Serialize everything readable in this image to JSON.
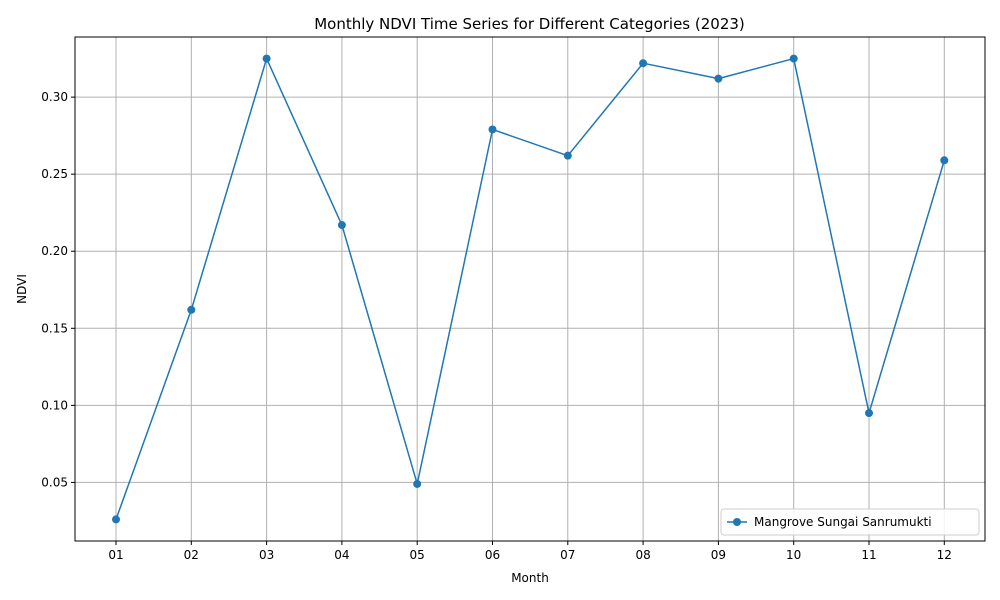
{
  "chart_data": {
    "type": "line",
    "title": "Monthly NDVI Time Series for Different Categories (2023)",
    "xlabel": "Month",
    "ylabel": "NDVI",
    "categories": [
      "01",
      "02",
      "03",
      "04",
      "05",
      "06",
      "07",
      "08",
      "09",
      "10",
      "11",
      "12"
    ],
    "series": [
      {
        "name": "Mangrove Sungai Sanrumukti",
        "color": "#1f77b4",
        "values": [
          0.026,
          0.162,
          0.325,
          0.217,
          0.049,
          0.279,
          0.262,
          0.322,
          0.312,
          0.325,
          0.095,
          0.259
        ]
      }
    ],
    "ylim": [
      0.012,
      0.339
    ],
    "yticks": [
      "0.05",
      "0.10",
      "0.15",
      "0.20",
      "0.25",
      "0.30"
    ],
    "grid": true,
    "legend_position": "lower-right"
  }
}
